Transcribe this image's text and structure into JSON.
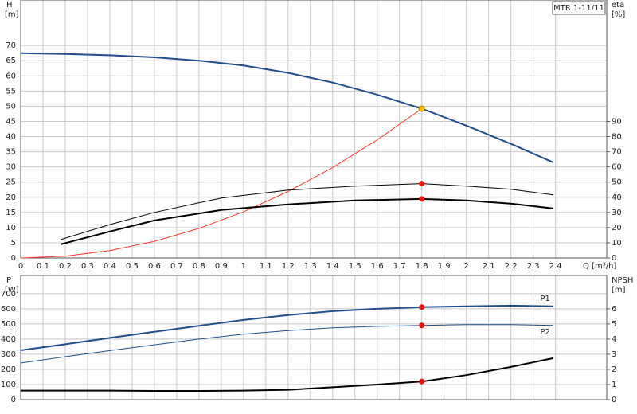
{
  "chart_data": [
    {
      "type": "line",
      "legend_box": "MTR 1-11/11",
      "ylabel": "H",
      "yunit": "[m]",
      "y2label": "eta",
      "y2unit": "[%]",
      "xlabel": "Q [m³/h]",
      "xlim": [
        0,
        2.63
      ],
      "xticks": [
        0,
        0.1,
        0.2,
        0.3,
        0.4,
        0.5,
        0.6,
        0.7,
        0.8,
        0.9,
        1,
        1.1,
        1.2,
        1.3,
        1.4,
        1.5,
        1.6,
        1.7,
        1.8,
        1.9,
        2,
        2.1,
        2.2,
        2.3,
        2.4
      ],
      "ylim": [
        0,
        85
      ],
      "yticks": [
        0,
        5,
        10,
        15,
        20,
        25,
        30,
        35,
        40,
        45,
        50,
        55,
        60,
        65,
        70
      ],
      "y2lim": [
        0,
        170
      ],
      "y2ticks": [
        0,
        10,
        20,
        30,
        40,
        50,
        60,
        70,
        80,
        90
      ],
      "grid": true,
      "series": [
        {
          "axis": "y",
          "color": "#1f4e8c",
          "width": 2,
          "x": [
            0,
            0.2,
            0.4,
            0.6,
            0.8,
            1,
            1.2,
            1.4,
            1.6,
            1.8,
            2,
            2.2,
            2.39
          ],
          "values": [
            67.5,
            67.2,
            66.8,
            66.1,
            65,
            63.4,
            61,
            57.8,
            53.8,
            49.2,
            43.6,
            37.6,
            31.5
          ]
        },
        {
          "axis": "y",
          "color": "#ff3b30",
          "width": 1,
          "x": [
            0,
            0.2,
            0.4,
            0.6,
            0.8,
            1,
            1.2,
            1.4,
            1.6,
            1.8
          ],
          "values": [
            0,
            0.61,
            2.43,
            5.47,
            9.72,
            15.2,
            21.9,
            29.8,
            38.9,
            49.2
          ]
        },
        {
          "axis": "y2",
          "color": "#000000",
          "width": 1,
          "x": [
            0.18,
            0.4,
            0.6,
            0.9,
            1.2,
            1.5,
            1.8,
            2,
            2.2,
            2.39
          ],
          "values": [
            12.1,
            22,
            30,
            39.5,
            44.7,
            47.4,
            49,
            47.4,
            45.3,
            41.6
          ]
        },
        {
          "axis": "y2",
          "color": "#000000",
          "width": 2,
          "x": [
            0.18,
            0.4,
            0.6,
            0.9,
            1.2,
            1.5,
            1.8,
            2,
            2.2,
            2.39
          ],
          "values": [
            9,
            17.4,
            24.7,
            31.6,
            35.3,
            37.9,
            38.9,
            37.9,
            35.8,
            32.6
          ]
        }
      ],
      "points": [
        {
          "axis": "y",
          "x": 1.8,
          "y": 49.2,
          "color": "#f5c400"
        },
        {
          "axis": "y2",
          "x": 1.8,
          "y": 49,
          "color": "#ee1111"
        },
        {
          "axis": "y2",
          "x": 1.8,
          "y": 38.9,
          "color": "#ee1111"
        }
      ]
    },
    {
      "type": "line",
      "ylabel": "P",
      "yunit": "[W]",
      "y2label": "NPSH",
      "y2unit": "[m]",
      "ylim": [
        0,
        820
      ],
      "yticks": [
        0,
        100,
        200,
        300,
        400,
        500,
        600,
        700
      ],
      "y2lim": [
        0,
        8.2
      ],
      "y2ticks": [
        0,
        1,
        2,
        3,
        4,
        5,
        6
      ],
      "grid": true,
      "series": [
        {
          "name": "P1",
          "axis": "y",
          "color": "#1f4e8c",
          "width": 2,
          "x": [
            0,
            0.2,
            0.4,
            0.6,
            0.8,
            1,
            1.2,
            1.4,
            1.6,
            1.8,
            2,
            2.2,
            2.39
          ],
          "values": [
            326,
            366,
            408,
            448,
            488,
            526,
            558,
            584,
            600,
            611,
            616,
            621,
            616
          ]
        },
        {
          "name": "P2",
          "axis": "y",
          "color": "#1f4e8c",
          "width": 1,
          "x": [
            0,
            0.2,
            0.4,
            0.6,
            0.8,
            1,
            1.2,
            1.4,
            1.6,
            1.8,
            2,
            2.2,
            2.39
          ],
          "values": [
            242,
            284,
            324,
            362,
            400,
            432,
            456,
            474,
            484,
            490,
            495,
            495,
            490
          ]
        },
        {
          "axis": "y2",
          "color": "#000000",
          "width": 2,
          "x": [
            0,
            0.2,
            0.4,
            0.6,
            0.8,
            1,
            1.2,
            1.4,
            1.6,
            1.8,
            2,
            2.2,
            2.39
          ],
          "values": [
            0.6,
            0.6,
            0.6,
            0.58,
            0.58,
            0.6,
            0.65,
            0.82,
            1,
            1.2,
            1.62,
            2.16,
            2.74
          ]
        }
      ],
      "points": [
        {
          "axis": "y",
          "x": 1.8,
          "y": 611,
          "color": "#ee1111"
        },
        {
          "axis": "y",
          "x": 1.8,
          "y": 490,
          "color": "#ee1111"
        },
        {
          "axis": "y2",
          "x": 1.8,
          "y": 1.2,
          "color": "#ee1111"
        }
      ]
    }
  ]
}
